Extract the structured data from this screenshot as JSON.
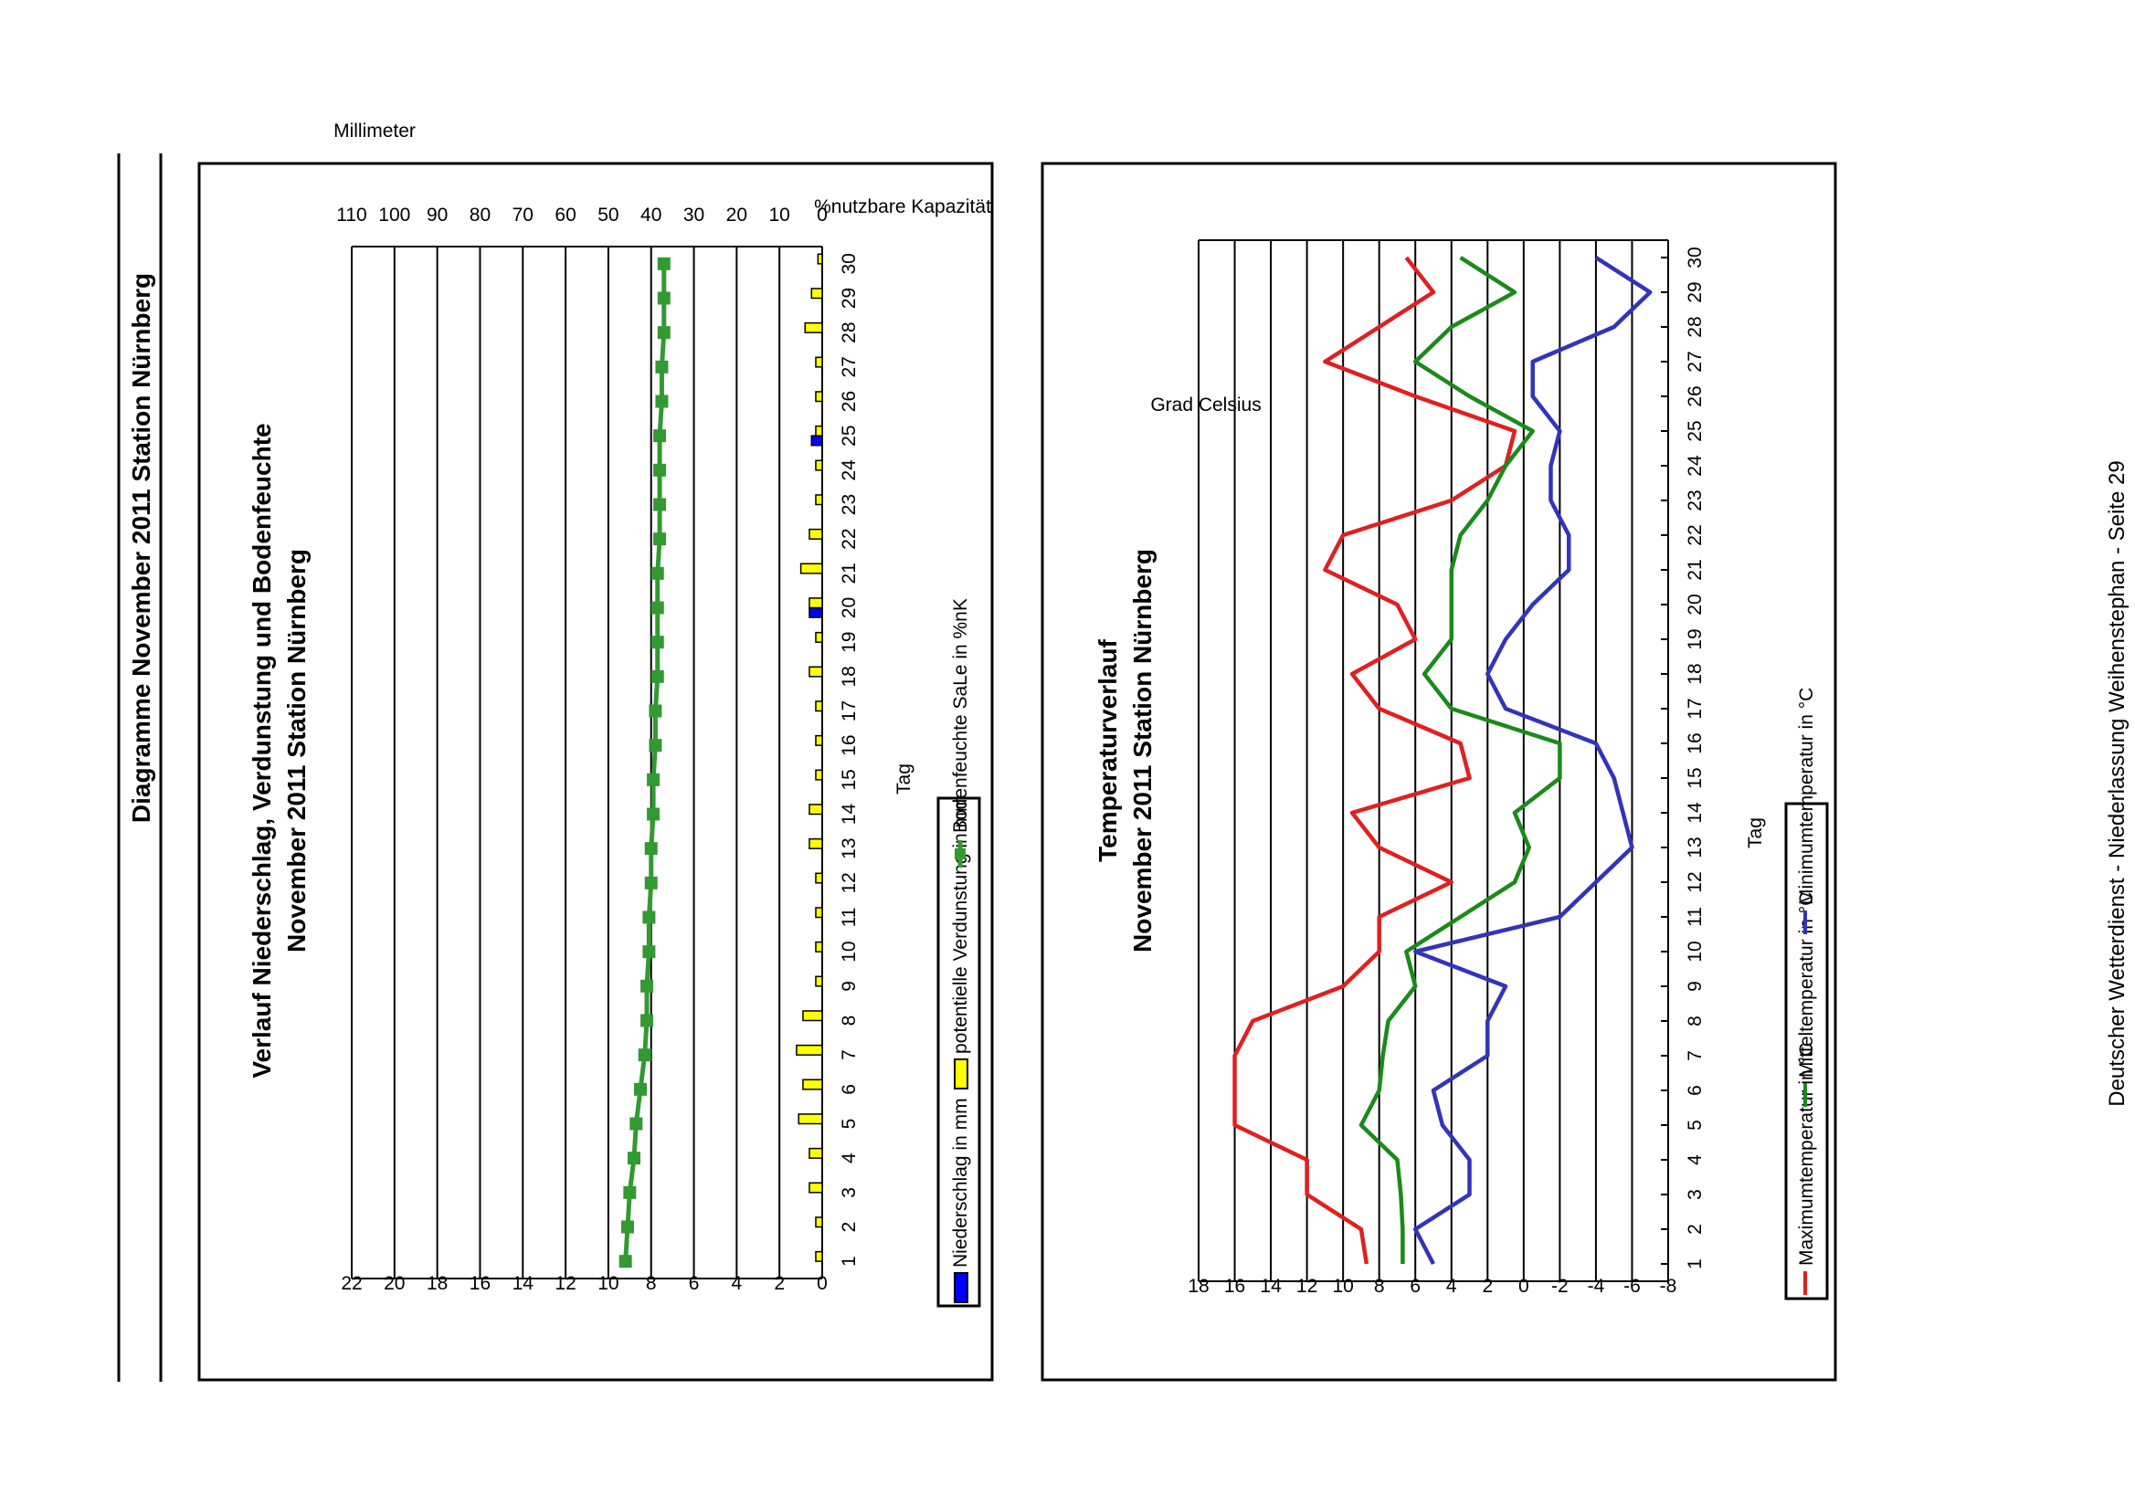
{
  "page": {
    "header": "Diagramme November 2011 Station Nürnberg",
    "footer": "Deutscher Wetterdienst - Niederlassung Weihenstephan - Seite 29"
  },
  "chart_data": [
    {
      "type": "bar",
      "title": "Verlauf Niederschlag, Verdunstung und Bodenfeuchte",
      "subtitle": "November 2011 Station Nürnberg",
      "xlabel": "Tag",
      "ylabel": "Millimeter",
      "y2label": "%nutzbare Kapazität",
      "ylim": [
        0,
        22
      ],
      "y2lim": [
        0,
        110
      ],
      "yticks": [
        0,
        2,
        4,
        6,
        8,
        10,
        12,
        14,
        16,
        18,
        20,
        22
      ],
      "y2ticks": [
        0,
        10,
        20,
        30,
        40,
        50,
        60,
        70,
        80,
        90,
        100,
        110
      ],
      "grid": true,
      "legend_position": "bottom",
      "categories": [
        "1",
        "2",
        "3",
        "4",
        "5",
        "6",
        "7",
        "8",
        "9",
        "10",
        "11",
        "12",
        "13",
        "14",
        "15",
        "16",
        "17",
        "18",
        "19",
        "20",
        "21",
        "22",
        "23",
        "24",
        "25",
        "26",
        "27",
        "28",
        "29",
        "30"
      ],
      "series": [
        {
          "name": "Niederschlag in mm",
          "color": "#0000ff",
          "values": [
            0,
            0,
            0,
            0,
            0,
            0,
            0,
            0,
            0,
            0,
            0,
            0,
            0,
            0,
            0,
            0,
            0,
            0,
            0,
            0.6,
            0,
            0,
            0,
            0,
            0.5,
            0,
            0,
            0,
            0,
            0
          ]
        },
        {
          "name": "potentielle Verdunstung in mm",
          "color": "#ffff00",
          "values": [
            0.3,
            0.3,
            0.6,
            0.6,
            1.1,
            0.9,
            1.2,
            0.9,
            0.3,
            0.3,
            0.3,
            0.3,
            0.6,
            0.6,
            0.3,
            0.3,
            0.3,
            0.6,
            0.3,
            0.6,
            1.0,
            0.6,
            0.3,
            0.3,
            0.3,
            0.3,
            0.3,
            0.8,
            0.5,
            0.2
          ]
        },
        {
          "name": "Bodenfeuchte SaLe in %nK",
          "color": "#339933",
          "axis": "right",
          "values": [
            46,
            45.5,
            45,
            44,
            43.5,
            42.5,
            41.5,
            41,
            41,
            40.5,
            40.5,
            40,
            40,
            39.5,
            39.5,
            39,
            39,
            38.5,
            38.5,
            38.5,
            38.5,
            38,
            38,
            38,
            38,
            37.5,
            37.5,
            37,
            37,
            37
          ]
        }
      ]
    },
    {
      "type": "line",
      "title": "Temperaturverlauf",
      "subtitle": "November 2011 Station Nürnberg",
      "xlabel": "Tag",
      "ylabel": "Grad Celsius",
      "ylim": [
        -8,
        18
      ],
      "yticks": [
        -8,
        -6,
        -4,
        -2,
        0,
        2,
        4,
        6,
        8,
        10,
        12,
        14,
        16,
        18
      ],
      "grid": true,
      "legend_position": "bottom",
      "categories": [
        "1",
        "2",
        "3",
        "4",
        "5",
        "6",
        "7",
        "8",
        "9",
        "10",
        "11",
        "12",
        "13",
        "14",
        "15",
        "16",
        "17",
        "18",
        "19",
        "20",
        "21",
        "22",
        "23",
        "24",
        "25",
        "26",
        "27",
        "28",
        "29",
        "30"
      ],
      "series": [
        {
          "name": "Maximumtemperatur in °C",
          "color": "#e02020",
          "values": [
            8.7,
            9,
            12,
            12,
            16,
            16,
            16,
            15,
            10,
            8,
            8,
            4,
            8,
            9.5,
            3,
            3.5,
            8,
            9.5,
            6,
            7,
            11,
            10,
            4,
            1,
            0.5,
            6,
            11,
            8,
            5,
            6.5
          ]
        },
        {
          "name": "Mitteltemperatur in °C",
          "color": "#1a8a1a",
          "values": [
            6.7,
            6.7,
            6.8,
            7,
            9,
            8,
            7.8,
            7.5,
            6,
            6.5,
            3.5,
            0.5,
            -0.3,
            0.5,
            -2,
            -2,
            4,
            5.5,
            4,
            4,
            4,
            3.5,
            2,
            1,
            -0.5,
            3,
            6,
            4,
            0.5,
            3.5
          ]
        },
        {
          "name": "Minimumtemperatur in °C",
          "color": "#3333bb",
          "values": [
            5,
            6,
            3,
            3,
            4.5,
            5,
            2,
            2,
            1,
            6,
            -2,
            -4,
            -6,
            -5.5,
            -5,
            -4,
            1,
            2,
            1,
            -0.5,
            -2.5,
            -2.5,
            -1.5,
            -1.5,
            -2,
            -0.5,
            -0.5,
            -5,
            -7,
            -4
          ]
        }
      ]
    }
  ]
}
